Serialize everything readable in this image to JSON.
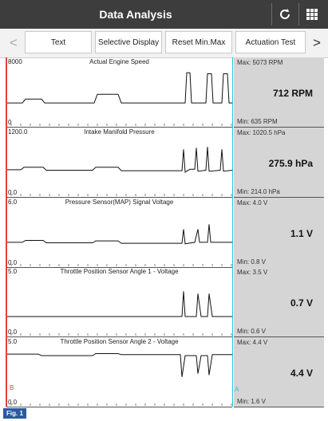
{
  "header": {
    "title": "Data Analysis",
    "refresh_icon": "refresh-icon",
    "grid_icon": "grid-icon"
  },
  "tabs": [
    {
      "label": "Text"
    },
    {
      "label": "Selective Display"
    },
    {
      "label": "Reset Min.Max"
    },
    {
      "label": "Actuation Test"
    }
  ],
  "nav": {
    "prev": "<",
    "next": ">"
  },
  "graphs": [
    {
      "label": "Actual Engine Speed",
      "ymax": "8000",
      "ymin": "0",
      "max": "Max: 5073 RPM",
      "min": "Min: 635 RPM",
      "current": "712 RPM"
    },
    {
      "label": "Intake Manifold Pressure",
      "ymax": "1200.0",
      "ymin": "0.0",
      "max": "Max: 1020.5 hPa",
      "min": "Min: 214.0 hPa",
      "current": "275.9 hPa"
    },
    {
      "label": "Pressure Sensor(MAP) Signal Voltage",
      "ymax": "6.0",
      "ymin": "0.0",
      "max": "Max: 4.0 V",
      "min": "Min: 0.8 V",
      "current": "1.1 V"
    },
    {
      "label": "Throttle Position Sensor Angle 1 - Voltage",
      "ymax": "5.0",
      "ymin": "0.0",
      "max": "Max: 3.5 V",
      "min": "Min: 0.6 V",
      "current": "0.7 V"
    },
    {
      "label": "Throttle Position Sensor Angle 2 - Voltage",
      "ymax": "5.0",
      "ymin": "0.0",
      "max": "Max: 4.4 V",
      "min": "Min: 1.6 V",
      "current": "4.4 V"
    }
  ],
  "cursors": {
    "left": "B",
    "right": "A"
  },
  "figure_label": "Fig. 1",
  "colors": {
    "header": "#3d3d3d",
    "cursor_left": "#e0443e",
    "cursor_right": "#27c4dd",
    "side_panel": "#d5d5d5"
  }
}
